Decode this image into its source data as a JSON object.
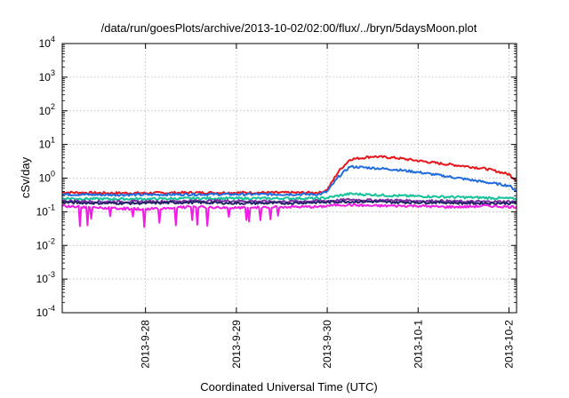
{
  "chart_data": {
    "type": "line",
    "title": "/data/run/goesPlots/archive/2013-10-02/02:00/flux/../bryn/5daysMoon.plot",
    "xlabel": "Coordinated Universal Time (UTC)",
    "ylabel": "cSv/day",
    "yscale": "log",
    "ylim": [
      0.0001,
      10000
    ],
    "xlim": [
      "2013-09-27 02:00",
      "2013-10-02 02:00"
    ],
    "grid": true,
    "legend": "none",
    "x_ticks": [
      "2013-9-28",
      "2013-9-29",
      "2013-9-30",
      "2013-10-1",
      "2013-10-2"
    ],
    "y_ticks": [
      {
        "base": "10",
        "exp": "-4"
      },
      {
        "base": "10",
        "exp": "-3"
      },
      {
        "base": "10",
        "exp": "-2"
      },
      {
        "base": "10",
        "exp": "-1"
      },
      {
        "base": "10",
        "exp": "0"
      },
      {
        "base": "10",
        "exp": "1"
      },
      {
        "base": "10",
        "exp": "2"
      },
      {
        "base": "10",
        "exp": "3"
      },
      {
        "base": "10",
        "exp": "4"
      }
    ],
    "x": [
      "2013-09-27 02:00",
      "2013-09-27 12:00",
      "2013-09-28 00:00",
      "2013-09-28 12:00",
      "2013-09-29 00:00",
      "2013-09-29 12:00",
      "2013-09-29 22:00",
      "2013-09-30 00:00",
      "2013-09-30 03:00",
      "2013-09-30 06:00",
      "2013-09-30 12:00",
      "2013-09-30 18:00",
      "2013-10-01 00:00",
      "2013-10-01 06:00",
      "2013-10-01 12:00",
      "2013-10-01 18:00",
      "2013-10-02 00:00",
      "2013-10-02 02:00"
    ],
    "series": [
      {
        "color": "#e8161b",
        "values": [
          0.38,
          0.36,
          0.36,
          0.37,
          0.37,
          0.37,
          0.37,
          0.45,
          1.6,
          3.6,
          4.4,
          4.0,
          3.3,
          2.7,
          2.3,
          1.9,
          1.3,
          0.85
        ]
      },
      {
        "color": "#1f6be0",
        "values": [
          0.33,
          0.32,
          0.32,
          0.33,
          0.33,
          0.33,
          0.33,
          0.4,
          1.1,
          2.2,
          2.0,
          1.8,
          1.5,
          1.2,
          0.95,
          0.75,
          0.6,
          0.42
        ]
      },
      {
        "color": "#15c29a",
        "values": [
          0.25,
          0.24,
          0.24,
          0.25,
          0.25,
          0.25,
          0.25,
          0.26,
          0.3,
          0.34,
          0.32,
          0.3,
          0.29,
          0.28,
          0.27,
          0.26,
          0.25,
          0.24
        ]
      },
      {
        "color": "#7d2fa0",
        "values": [
          0.21,
          0.2,
          0.2,
          0.21,
          0.21,
          0.2,
          0.21,
          0.21,
          0.22,
          0.23,
          0.22,
          0.22,
          0.21,
          0.21,
          0.2,
          0.2,
          0.2,
          0.2
        ]
      },
      {
        "color": "#222266",
        "values": [
          0.19,
          0.18,
          0.18,
          0.19,
          0.18,
          0.18,
          0.19,
          0.19,
          0.2,
          0.2,
          0.2,
          0.19,
          0.19,
          0.19,
          0.18,
          0.18,
          0.18,
          0.18
        ]
      },
      {
        "color": "#f21ce6",
        "values": [
          0.15,
          0.13,
          0.12,
          0.14,
          0.13,
          0.14,
          0.14,
          0.15,
          0.16,
          0.16,
          0.15,
          0.15,
          0.15,
          0.14,
          0.14,
          0.15,
          0.14,
          0.14
        ]
      }
    ]
  }
}
